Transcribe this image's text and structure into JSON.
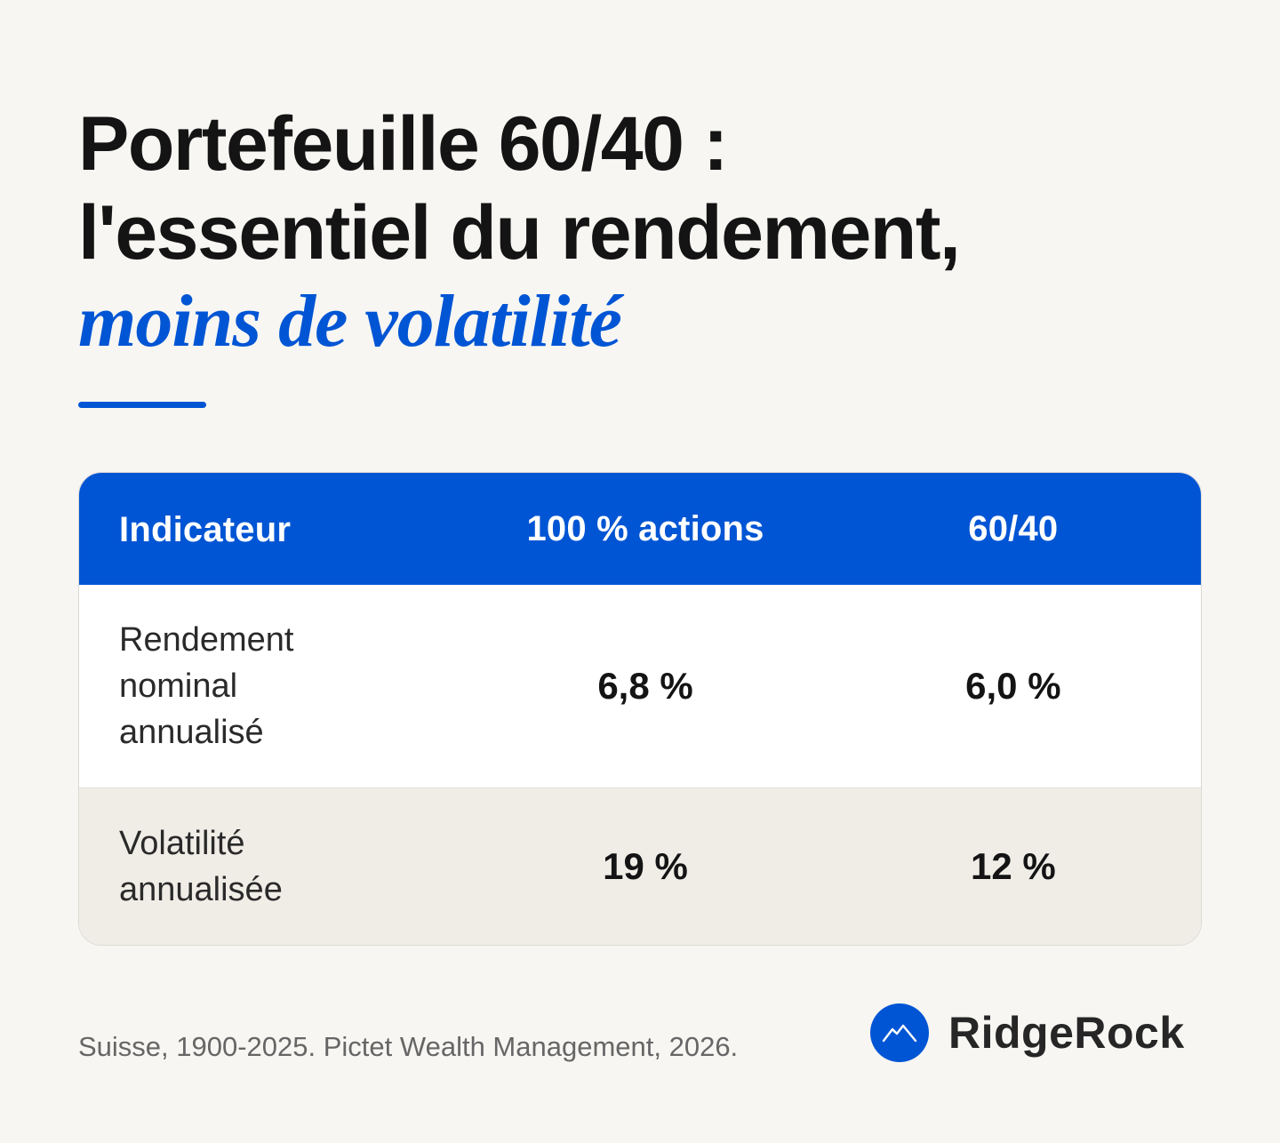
{
  "title": {
    "line1": "Portefeuille 60/40 :",
    "line2": "l'essentiel du rendement,",
    "accent": "moins de volatilité"
  },
  "colors": {
    "accent": "#0055d4",
    "background": "#f7f6f3",
    "alt_row": "#f0ede7"
  },
  "table": {
    "headers": [
      "Indicateur",
      "100 % actions",
      "60/40"
    ],
    "rows": [
      {
        "label": "Rendement nominal annualisé",
        "values": [
          "6,8 %",
          "6,0 %"
        ]
      },
      {
        "label": "Volatilité annualisée",
        "values": [
          "19 %",
          "12 %"
        ]
      }
    ]
  },
  "footer": {
    "source": "Suisse, 1900-2025. Pictet Wealth Management, 2026.",
    "brand_name": "RidgeRock",
    "brand_icon": "mountain-icon"
  }
}
